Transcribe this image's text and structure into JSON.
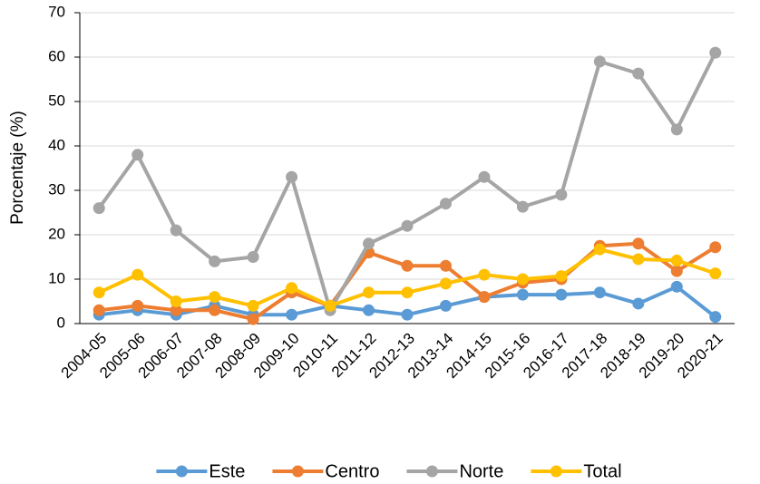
{
  "chart_data": {
    "type": "line",
    "ylabel": "Porcentaje (%)",
    "categories": [
      "2004-05",
      "2005-06",
      "2006-07",
      "2007-08",
      "2008-09",
      "2009-10",
      "2010-11",
      "2011-12",
      "2012-13",
      "2013-14",
      "2014-15",
      "2015-16",
      "2016-17",
      "2017-18",
      "2018-19",
      "2019-20",
      "2020-21"
    ],
    "series": [
      {
        "name": "Este",
        "color": "#5b9bd5",
        "values": [
          2,
          3,
          2,
          4,
          2,
          2,
          4,
          3,
          2,
          4,
          6,
          6.5,
          6.5,
          7,
          4.5,
          8.3,
          1.5
        ]
      },
      {
        "name": "Centro",
        "color": "#ed7d31",
        "values": [
          3,
          4,
          3,
          3,
          1,
          7,
          4,
          16,
          13,
          13,
          6,
          9.2,
          10,
          17.5,
          18,
          11.8,
          17.2
        ]
      },
      {
        "name": "Norte",
        "color": "#a5a5a5",
        "values": [
          26,
          38,
          21,
          14,
          15,
          33,
          3,
          18,
          22,
          27,
          33,
          26.3,
          29,
          59,
          56.3,
          43.7,
          61
        ]
      },
      {
        "name": "Total",
        "color": "#ffc000",
        "values": [
          7,
          11,
          5,
          6,
          4,
          8,
          4,
          7,
          7,
          9,
          11,
          10,
          10.7,
          16.7,
          14.5,
          14.2,
          11.3
        ]
      }
    ],
    "ylim": [
      0,
      70
    ],
    "yticks": [
      0,
      10,
      20,
      30,
      40,
      50,
      60,
      70
    ],
    "grid": true,
    "legend": "bottom"
  }
}
